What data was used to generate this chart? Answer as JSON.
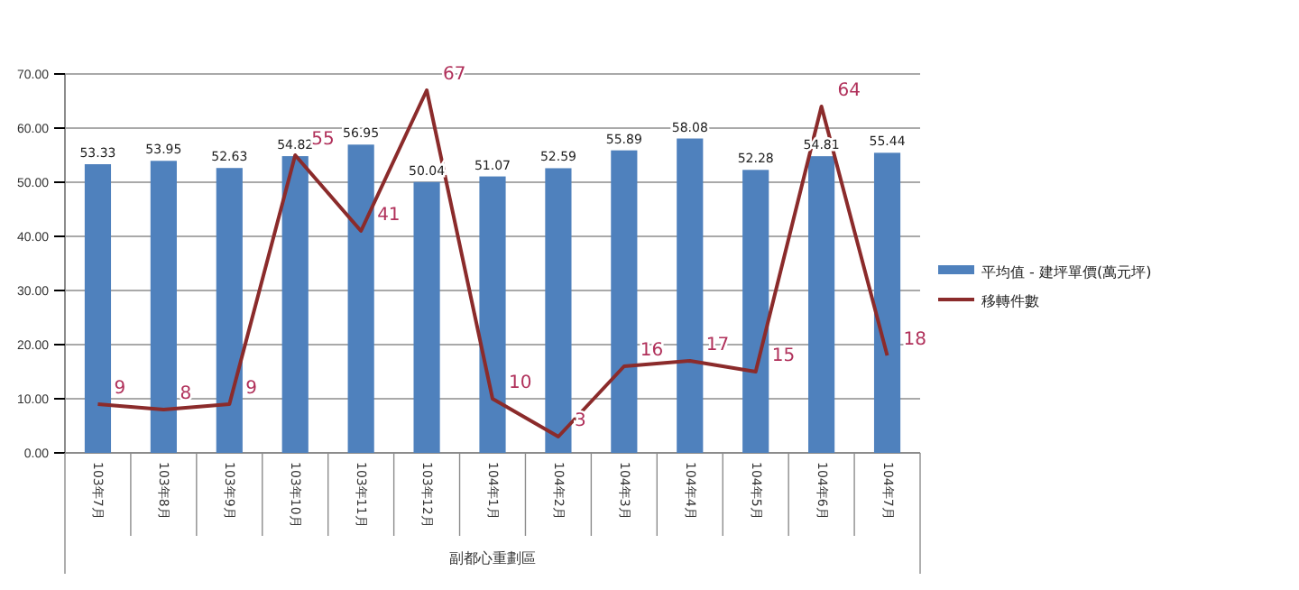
{
  "chart_data": {
    "type": "bar",
    "categories": [
      "103年7月",
      "103年8月",
      "103年9月",
      "103年10月",
      "103年11月",
      "103年12月",
      "104年1月",
      "104年2月",
      "104年3月",
      "104年4月",
      "104年5月",
      "104年6月",
      "104年7月"
    ],
    "xlabel": "副都心重劃區",
    "series": [
      {
        "name": "平均值 - 建坪單價(萬元坪)",
        "color": "#4f81bd",
        "values": [
          53.33,
          53.95,
          52.63,
          54.82,
          56.95,
          50.04,
          51.07,
          52.59,
          55.89,
          58.08,
          52.28,
          54.81,
          55.44
        ]
      },
      {
        "name": "移轉件數",
        "type": "line",
        "color": "#8b2b2b",
        "values": [
          9,
          8,
          9,
          55,
          41,
          67,
          10,
          3,
          16,
          17,
          15,
          64,
          18
        ]
      }
    ],
    "ylim": [
      0,
      70
    ],
    "yticks": [
      {
        "value": 0,
        "label": "0.00"
      },
      {
        "value": 10,
        "label": "10.00"
      },
      {
        "value": 20,
        "label": "20.00"
      },
      {
        "value": 30,
        "label": "30.00"
      },
      {
        "value": 40,
        "label": "40.00"
      },
      {
        "value": 50,
        "label": "50.00"
      },
      {
        "value": 60,
        "label": "60.00"
      },
      {
        "value": 70,
        "label": "70.00"
      }
    ],
    "grid": "y",
    "legend": "right",
    "data_labels": true,
    "marker": "none"
  }
}
